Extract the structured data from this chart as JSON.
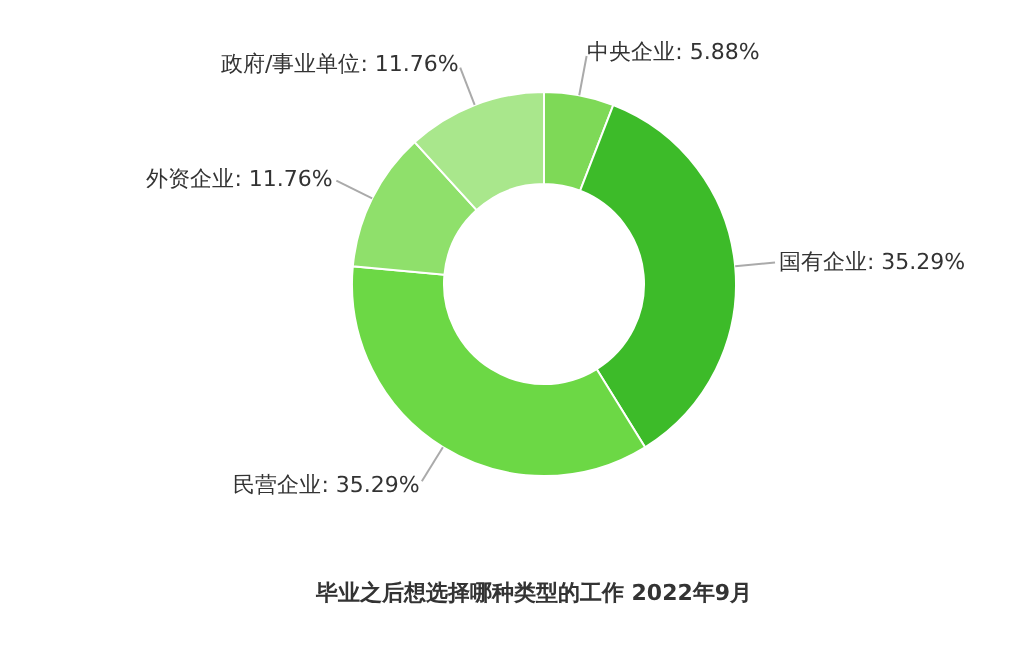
{
  "chart_data": {
    "type": "donut",
    "title": "毕业之后想选择哪种类型的工作 2022年9月",
    "categories": [
      "中央企业",
      "国有企业",
      "民营企业",
      "外资企业",
      "政府/事业单位"
    ],
    "values": [
      5.88,
      35.29,
      35.29,
      11.76,
      11.76
    ],
    "value_labels": [
      "5.88%",
      "35.29%",
      "35.29%",
      "11.76%",
      "11.76%"
    ],
    "colors": [
      "#7ed957",
      "#3dbb29",
      "#6cd845",
      "#8fe06b",
      "#a9e78c"
    ]
  }
}
